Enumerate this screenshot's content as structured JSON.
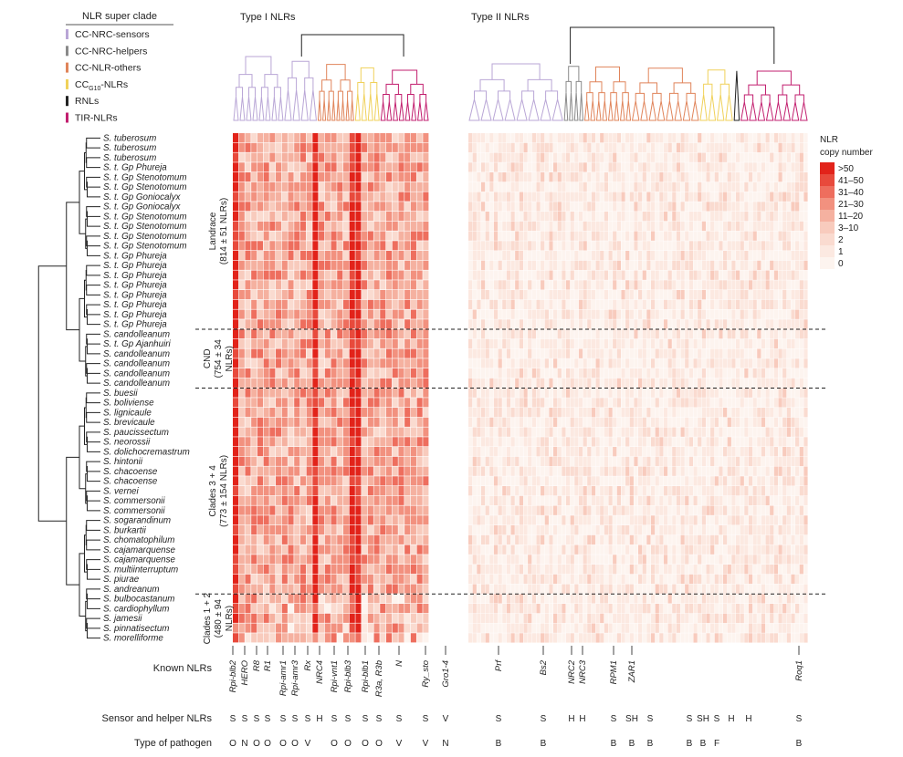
{
  "figure": {
    "legend": {
      "title": "NLR super clade",
      "items": [
        {
          "label": "CC-NRC-sensors",
          "color": "#b9a6d6"
        },
        {
          "label": "CC-NRC-helpers",
          "color": "#8a8a8a"
        },
        {
          "label": "CC-NLR-others",
          "color": "#e0845a"
        },
        {
          "label": "CCG10-NLRs",
          "color": "#f0d15a"
        },
        {
          "label": "RNLs",
          "color": "#222222"
        },
        {
          "label": "TIR-NLRs",
          "color": "#c21f6f"
        }
      ]
    },
    "type1_label": "Type I NLRs",
    "type2_label": "Type II NLRs",
    "colorbar": {
      "title": [
        "NLR",
        "copy number"
      ],
      "labels": [
        ">50",
        "41–50",
        "31–40",
        "21–30",
        "11–20",
        "3–10",
        "2",
        "1",
        "0"
      ],
      "colors": [
        "#e2231a",
        "#e84a3c",
        "#ee6e5e",
        "#f2917f",
        "#f5b1a0",
        "#f8cbbd",
        "#fadbd0",
        "#fce9e1",
        "#fdf4ef"
      ]
    },
    "groups": [
      {
        "label": [
          "Landrace",
          "(814 ± 51 NLRs)"
        ]
      },
      {
        "label": [
          "CND",
          "(754 ± 34",
          "NLRs)"
        ]
      },
      {
        "label": [
          "Clades 3 + 4",
          "(773 ± 154 NLRs)"
        ]
      },
      {
        "label": [
          "Clades 1 + 2",
          "(480 ± 94",
          "NLRs)"
        ]
      }
    ],
    "known_nlrs_title": "Known NLRs",
    "sensor_helper_title": "Sensor and helper NLRs",
    "pathogen_title": "Type of pathogen"
  },
  "chart_data": {
    "type": "heatmap",
    "rows": [
      "S. tuberosum",
      "S. tuberosum",
      "S. tuberosum",
      "S. t. Gp Phureja",
      "S. t. Gp Stenotomum",
      "S. t. Gp Stenotomum",
      "S. t. Gp Goniocalyx",
      "S. t. Gp Goniocalyx",
      "S. t. Gp Stenotomum",
      "S. t. Gp Stenotomum",
      "S. t. Gp Stenotomum",
      "S. t. Gp Stenotomum",
      "S. t. Gp Phureja",
      "S. t. Gp Phureja",
      "S. t. Gp Phureja",
      "S. t. Gp Phureja",
      "S. t. Gp Phureja",
      "S. t. Gp Phureja",
      "S. t. Gp Phureja",
      "S. t. Gp Phureja",
      "S. candolleanum",
      "S. t. Gp Ajanhuiri",
      "S. candolleanum",
      "S. candolleanum",
      "S. candolleanum",
      "S. candolleanum",
      "S. buesii",
      "S. boliviense",
      "S. lignicaule",
      "S. brevicaule",
      "S. paucissectum",
      "S. neorossii",
      "S. dolichocremastrum",
      "S. hintonii",
      "S. chacoense",
      "S. chacoense",
      "S. vernei",
      "S. commersonii",
      "S. commersonii",
      "S. sogarandinum",
      "S. burkartii",
      "S. chomatophilum",
      "S. cajamarquense",
      "S. cajamarquense",
      "S. multiinterruptum",
      "S. piurae",
      "S. andreanum",
      "S. bulbocastanum",
      "S. cardiophyllum",
      "S. jamesii",
      "S. pinnatisectum",
      "S. morelliforme"
    ],
    "group_sizes": [
      20,
      6,
      21,
      5
    ],
    "type1_columns": 32,
    "type2_columns": 80,
    "dense_type1_columns": [
      0,
      13,
      19,
      20
    ],
    "known_nlrs": [
      {
        "name": "Rpi-blb2",
        "sensor": "S",
        "pathogen": "O"
      },
      {
        "name": "HERO",
        "sensor": "S",
        "pathogen": "N"
      },
      {
        "name": "R8",
        "sensor": "S",
        "pathogen": "O"
      },
      {
        "name": "R1",
        "sensor": "S",
        "pathogen": "O"
      },
      {
        "name": "Rpi-amr1",
        "sensor": "S",
        "pathogen": "O"
      },
      {
        "name": "Rpi-amr3",
        "sensor": "S",
        "pathogen": "O"
      },
      {
        "name": "Rx",
        "sensor": "S",
        "pathogen": "V"
      },
      {
        "name": "NRC4",
        "sensor": "H",
        "pathogen": ""
      },
      {
        "name": "Rpi-vnt1",
        "sensor": "S",
        "pathogen": "O"
      },
      {
        "name": "Rpi-blb3",
        "sensor": "S",
        "pathogen": "O"
      },
      {
        "name": "Rpi-blb1",
        "sensor": "S",
        "pathogen": "O"
      },
      {
        "name": "R3a, R3b",
        "sensor": "S",
        "pathogen": "O"
      },
      {
        "name": "N",
        "sensor": "S",
        "pathogen": "V"
      },
      {
        "name": "Ry_sto",
        "sensor": "S",
        "pathogen": "V"
      },
      {
        "name": "Gro1-4",
        "sensor": "V",
        "pathogen": "N"
      },
      {
        "name": "Prf",
        "sensor": "S",
        "pathogen": "B"
      },
      {
        "name": "Bs2",
        "sensor": "S",
        "pathogen": "B"
      },
      {
        "name": "NRC2",
        "sensor": "H",
        "pathogen": ""
      },
      {
        "name": "NRC3",
        "sensor": "H",
        "pathogen": ""
      },
      {
        "name": "RPM1",
        "sensor": "S",
        "pathogen": "B"
      },
      {
        "name": "ZAR1",
        "sensor": "SH",
        "pathogen": "B"
      },
      {
        "name": "",
        "sensor": "S",
        "pathogen": "B"
      },
      {
        "name": "",
        "sensor": "S",
        "pathogen": "B"
      },
      {
        "name": "",
        "sensor": "SH",
        "pathogen": "B"
      },
      {
        "name": "",
        "sensor": "S",
        "pathogen": "F"
      },
      {
        "name": "",
        "sensor": "H",
        "pathogen": ""
      },
      {
        "name": "",
        "sensor": "H",
        "pathogen": ""
      },
      {
        "name": "Roq1",
        "sensor": "S",
        "pathogen": "B"
      }
    ]
  }
}
